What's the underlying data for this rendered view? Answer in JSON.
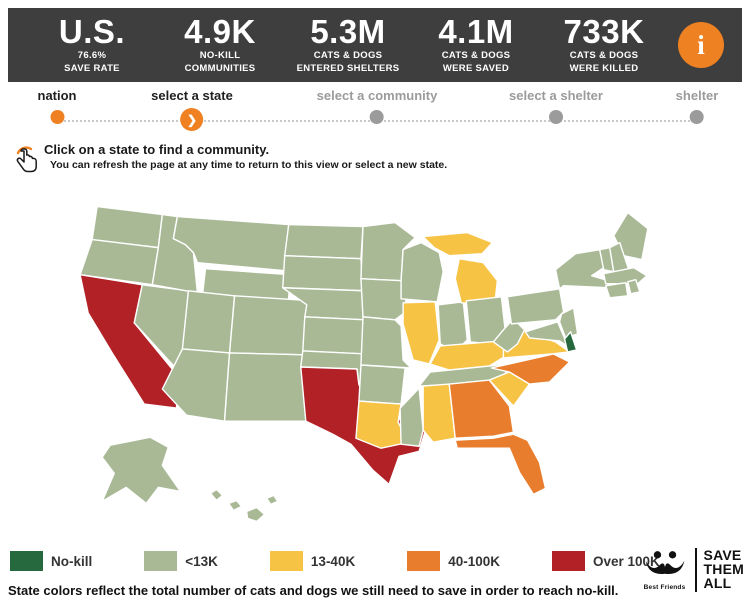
{
  "header": {
    "bg_color": "#3E3E3E",
    "accent_color": "#EE8122",
    "stats": [
      {
        "value": "U.S.",
        "label_line1": "76.6%",
        "label_line2": "SAVE RATE"
      },
      {
        "value": "4.9K",
        "label_line1": "NO-KILL",
        "label_line2": "COMMUNITIES"
      },
      {
        "value": "5.3M",
        "label_line1": "CATS & DOGS",
        "label_line2": "ENTERED SHELTERS"
      },
      {
        "value": "4.1M",
        "label_line1": "CATS & DOGS",
        "label_line2": "WERE SAVED"
      },
      {
        "value": "733K",
        "label_line1": "CATS & DOGS",
        "label_line2": "WERE KILLED"
      }
    ],
    "info_icon_glyph": "i"
  },
  "stepper": {
    "active_color": "#F08122",
    "inactive_color": "#9B9B9B",
    "current_chevron": "❯",
    "steps": [
      {
        "label": "nation",
        "status": "done"
      },
      {
        "label": "select a state",
        "status": "current"
      },
      {
        "label": "select a community",
        "status": "upcoming"
      },
      {
        "label": "select a shelter",
        "status": "upcoming"
      },
      {
        "label": "shelter",
        "status": "upcoming"
      }
    ]
  },
  "instruction": {
    "title": "Click on a state to find a community.",
    "subtitle": "You can refresh the page at any time to return to this view or select a new state."
  },
  "legend": {
    "items": [
      {
        "label": "No-kill",
        "color": "#26693F"
      },
      {
        "label": "<13K",
        "color": "#A9B996"
      },
      {
        "label": "13-40K",
        "color": "#F6C344"
      },
      {
        "label": "40-100K",
        "color": "#E87E2D"
      },
      {
        "label": "Over 100K",
        "color": "#B22126"
      }
    ]
  },
  "map": {
    "type": "choropleth",
    "states": {
      "WA": "<13K",
      "OR": "<13K",
      "CA": "Over 100K",
      "NV": "<13K",
      "ID": "<13K",
      "MT": "<13K",
      "WY": "<13K",
      "UT": "<13K",
      "CO": "<13K",
      "AZ": "<13K",
      "NM": "<13K",
      "ND": "<13K",
      "SD": "<13K",
      "NE": "<13K",
      "KS": "<13K",
      "OK": "<13K",
      "TX": "Over 100K",
      "MN": "<13K",
      "IA": "<13K",
      "MO": "<13K",
      "AR": "<13K",
      "LA": "13-40K",
      "WI": "<13K",
      "IL": "13-40K",
      "IN": "<13K",
      "MI": "13-40K",
      "OH": "<13K",
      "KY": "13-40K",
      "TN": "<13K",
      "MS": "<13K",
      "AL": "13-40K",
      "GA": "40-100K",
      "FL": "40-100K",
      "SC": "13-40K",
      "NC": "40-100K",
      "VA": "13-40K",
      "WV": "<13K",
      "PA": "<13K",
      "NY": "<13K",
      "NJ": "<13K",
      "MD": "<13K",
      "DE": "No-kill",
      "ME": "<13K",
      "VT": "<13K",
      "NH": "<13K",
      "MA": "<13K",
      "CT": "<13K",
      "RI": "<13K",
      "AK": "<13K",
      "HI": "<13K"
    }
  },
  "footer": {
    "note": "State colors reflect the total number of cats and dogs we still need to save in order to reach no-kill.",
    "logo_text": "Best Friends",
    "tagline": [
      "SAVE",
      "THEM",
      "ALL"
    ]
  }
}
